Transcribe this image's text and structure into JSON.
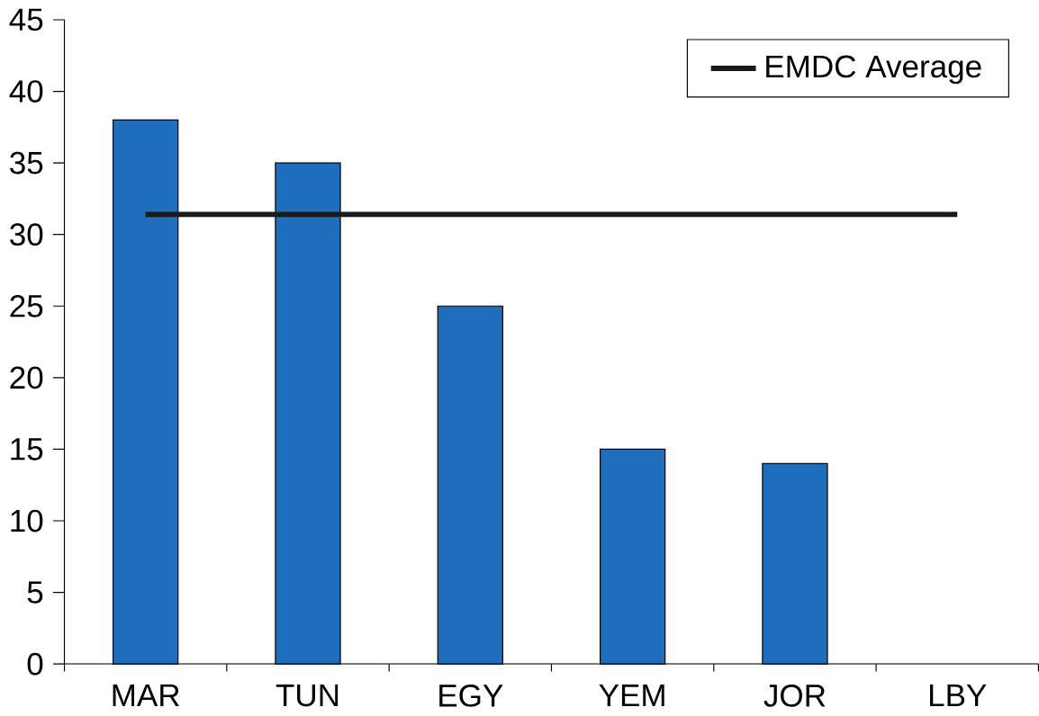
{
  "chart_data": {
    "type": "bar",
    "categories": [
      "MAR",
      "TUN",
      "EGY",
      "YEM",
      "JOR",
      "LBY"
    ],
    "series": [
      {
        "color": "#1f6dbd",
        "values": [
          38,
          35,
          25,
          15,
          14,
          null
        ]
      },
      {
        "type": "line",
        "name": "EMDC Average",
        "color": "#1a1a1a",
        "values": [
          31.4,
          31.4,
          31.4,
          31.4,
          31.4,
          31.4
        ]
      }
    ],
    "ylim": [
      0,
      45
    ],
    "yticks": [
      0,
      5,
      10,
      15,
      20,
      25,
      30,
      35,
      40,
      45
    ],
    "grid": false,
    "legend": "top right"
  }
}
